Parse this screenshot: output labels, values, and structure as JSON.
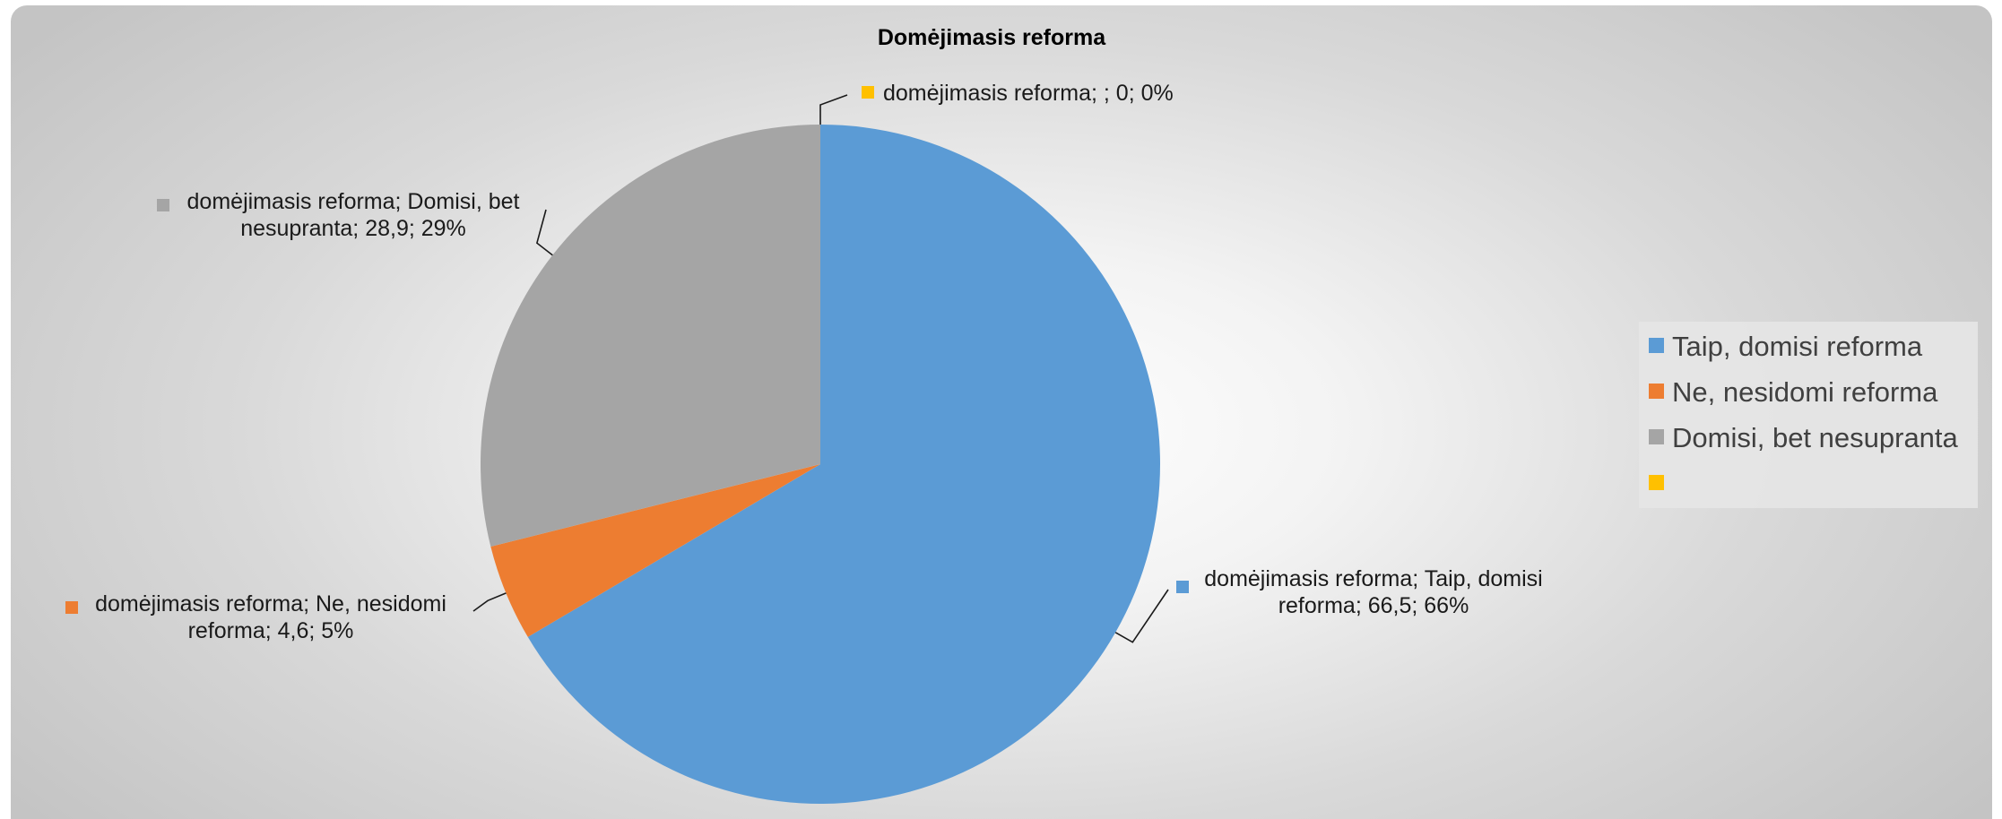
{
  "chart_data": {
    "type": "pie",
    "title": "Domėjimasis reforma",
    "categories": [
      "Taip, domisi reforma",
      "Ne, nesidomi reforma",
      "Domisi, bet nesupranta",
      ""
    ],
    "values": [
      66.5,
      4.6,
      28.9,
      0
    ],
    "percent_labels": [
      "66%",
      "5%",
      "29%",
      "0%"
    ],
    "series": [
      {
        "name": "domėjimasis reforma",
        "values": [
          66.5,
          4.6,
          28.9,
          0
        ]
      }
    ],
    "colors": [
      "#5b9bd5",
      "#ed7d31",
      "#a5a5a5",
      "#ffc000"
    ],
    "data_labels": [
      [
        "domėjimasis reforma; Taip, domisi",
        "reforma; 66,5; 66%"
      ],
      [
        "domėjimasis reforma; Ne, nesidomi",
        "reforma; 4,6; 5%"
      ],
      [
        "domėjimasis reforma; Domisi, bet",
        "nesupranta; 28,9; 29%"
      ],
      [
        "domėjimasis reforma; ; 0; 0%"
      ]
    ],
    "legend": {
      "position": "right",
      "entries": [
        "Taip, domisi reforma",
        "Ne, nesidomi reforma",
        "Domisi, bet nesupranta",
        ""
      ]
    }
  }
}
